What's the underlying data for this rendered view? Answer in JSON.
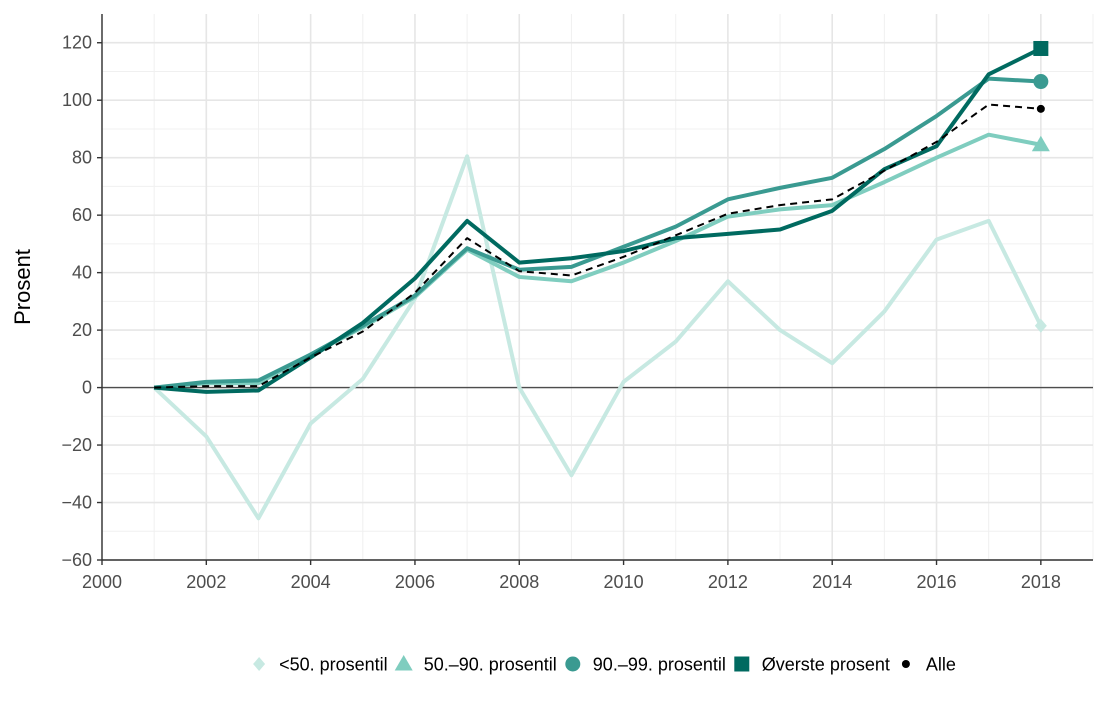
{
  "chart_data": {
    "type": "line",
    "title": "",
    "xlabel": "",
    "ylabel": "Prosent",
    "xlim": [
      2000,
      2019
    ],
    "ylim": [
      -60,
      130
    ],
    "x_ticks": [
      2000,
      2002,
      2004,
      2006,
      2008,
      2010,
      2012,
      2014,
      2016,
      2018
    ],
    "x_tick_labels": [
      "2000",
      "2002",
      "2004",
      "2006",
      "2008",
      "2010",
      "2012",
      "2014",
      "2016",
      "2018"
    ],
    "y_ticks": [
      -60,
      -40,
      -20,
      0,
      20,
      40,
      60,
      80,
      100,
      120
    ],
    "y_tick_labels": [
      "−60",
      "−40",
      "−20",
      "0",
      "20",
      "40",
      "60",
      "80",
      "100",
      "120"
    ],
    "grid": true,
    "zero_line": true,
    "legend_position": "bottom",
    "x": [
      2001,
      2002,
      2003,
      2004,
      2005,
      2006,
      2007,
      2008,
      2009,
      2010,
      2011,
      2012,
      2013,
      2014,
      2015,
      2016,
      2017,
      2018
    ],
    "series": [
      {
        "name": "<50. prosentil",
        "color": "#c7e9e2",
        "marker": "diamond",
        "dashed": false,
        "values": [
          0,
          -17,
          -45.5,
          -12.5,
          3,
          31,
          80.5,
          0,
          -30.5,
          2,
          16,
          37,
          20,
          8.5,
          26.5,
          51.5,
          58,
          21.5
        ]
      },
      {
        "name": "50.–90. prosentil",
        "color": "#7fcdbf",
        "marker": "triangle",
        "dashed": false,
        "values": [
          0,
          1.5,
          1.5,
          11.5,
          21,
          31.5,
          48,
          38.5,
          37,
          43.5,
          51,
          59.5,
          62,
          63.5,
          71.5,
          80,
          88,
          84.5
        ]
      },
      {
        "name": "90.–99. prosentil",
        "color": "#3a9a91",
        "marker": "circle",
        "dashed": false,
        "values": [
          0,
          2,
          2.5,
          11.5,
          21.5,
          32,
          48.5,
          41,
          42,
          49,
          56,
          65.5,
          69.5,
          73,
          83,
          94.5,
          107.5,
          106.5
        ]
      },
      {
        "name": "Øverste prosent",
        "color": "#006a60",
        "marker": "square",
        "dashed": false,
        "values": [
          0,
          -1.5,
          -1,
          10.5,
          22.5,
          38,
          58,
          43.5,
          45,
          47.5,
          52,
          53.5,
          55,
          61.5,
          76,
          84,
          109,
          118
        ]
      },
      {
        "name": "Alle",
        "color": "#000000",
        "marker": "dot",
        "dashed": true,
        "values": [
          0,
          0.5,
          0.5,
          10.5,
          19.5,
          33,
          52,
          40.5,
          39,
          45.5,
          53,
          60.5,
          63.5,
          65.5,
          75.5,
          85.5,
          98.5,
          97
        ]
      }
    ]
  }
}
